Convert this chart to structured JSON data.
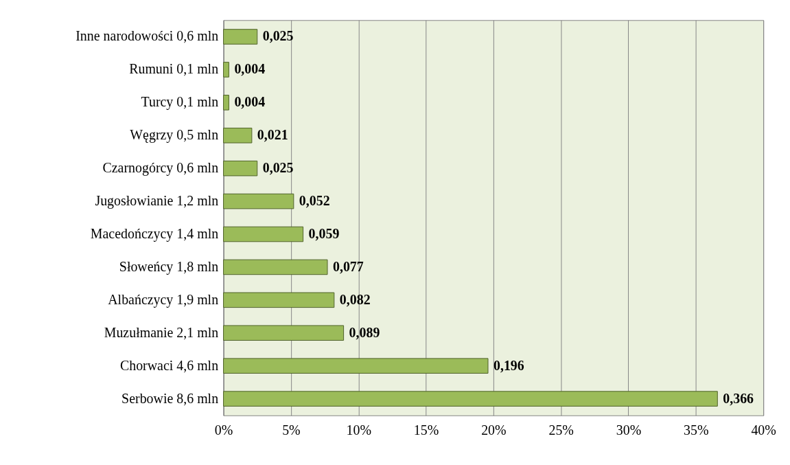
{
  "chart_data": {
    "type": "bar",
    "orientation": "horizontal",
    "categories": [
      "Inne narodowości 0,6 mln",
      "Rumuni 0,1 mln",
      "Turcy 0,1 mln",
      "Węgrzy 0,5 mln",
      "Czarnogórcy 0,6 mln",
      "Jugosłowianie 1,2 mln",
      "Macedończycy 1,4 mln",
      "Słoweńcy 1,8 mln",
      "Albańczycy 1,9 mln",
      "Muzułmanie 2,1 mln",
      "Chorwaci 4,6 mln",
      "Serbowie 8,6 mln"
    ],
    "values": [
      0.025,
      0.004,
      0.004,
      0.021,
      0.025,
      0.052,
      0.059,
      0.077,
      0.082,
      0.089,
      0.196,
      0.366
    ],
    "value_labels": [
      "0,025",
      "0,004",
      "0,004",
      "0,021",
      "0,025",
      "0,052",
      "0,059",
      "0,077",
      "0,082",
      "0,089",
      "0,196",
      "0,366"
    ],
    "color": "#9bbb59",
    "xlim": [
      0,
      0.4
    ],
    "xticks": [
      {
        "value": 0,
        "label": "0%"
      },
      {
        "value": 0.05,
        "label": "5%"
      },
      {
        "value": 0.1,
        "label": "10%"
      },
      {
        "value": 0.15,
        "label": "15%"
      },
      {
        "value": 0.2,
        "label": "20%"
      },
      {
        "value": 0.25,
        "label": "25%"
      },
      {
        "value": 0.3,
        "label": "30%"
      },
      {
        "value": 0.35,
        "label": "35%"
      },
      {
        "value": 0.4,
        "label": "40%"
      }
    ],
    "grid": "x"
  }
}
